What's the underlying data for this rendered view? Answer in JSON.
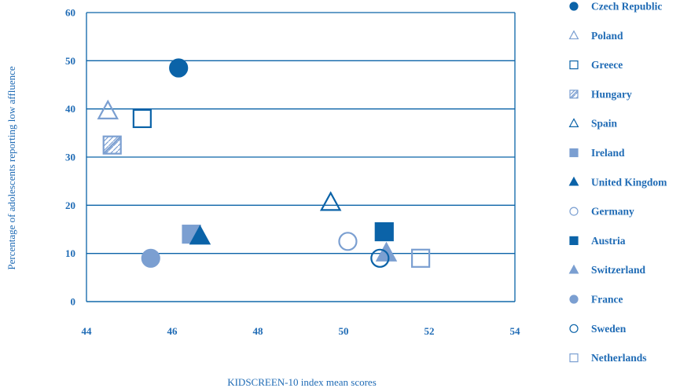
{
  "chart_data": {
    "type": "scatter",
    "title": "",
    "xlabel": "KIDSCREEN-10 index mean scores",
    "ylabel": "Percentage of adolescents reporting low affluence",
    "xlim": [
      44,
      54
    ],
    "ylim": [
      0,
      60
    ],
    "xticks": [
      "44",
      "46",
      "48",
      "50",
      "52",
      "54"
    ],
    "yticks": [
      "0",
      "10",
      "20",
      "30",
      "40",
      "50",
      "60"
    ],
    "grid": "horizontal",
    "legend_position": "right",
    "colors": {
      "dark": "#0b63a8",
      "light": "#7b9fd1",
      "text": "#1f6bb5"
    },
    "series": [
      {
        "name": "Czech Republic",
        "marker": "circle",
        "fill": "filled",
        "color": "#0b63a8",
        "x": 46.15,
        "y": 48.5
      },
      {
        "name": "Poland",
        "marker": "triangle",
        "fill": "open",
        "color": "#7b9fd1",
        "x": 44.5,
        "y": 39.5
      },
      {
        "name": "Greece",
        "marker": "square",
        "fill": "open",
        "color": "#0b63a8",
        "x": 45.3,
        "y": 38
      },
      {
        "name": "Hungary",
        "marker": "square",
        "fill": "hatched",
        "color": "#7b9fd1",
        "x": 44.6,
        "y": 32.5
      },
      {
        "name": "Spain",
        "marker": "triangle",
        "fill": "open",
        "color": "#0b63a8",
        "x": 49.7,
        "y": 20.5
      },
      {
        "name": "Ireland",
        "marker": "square",
        "fill": "filled",
        "color": "#7b9fd1",
        "x": 46.45,
        "y": 14
      },
      {
        "name": "United Kingdom",
        "marker": "triangle",
        "fill": "filled",
        "color": "#0b63a8",
        "x": 46.65,
        "y": 13.5
      },
      {
        "name": "Germany",
        "marker": "circle",
        "fill": "open",
        "color": "#7b9fd1",
        "x": 50.1,
        "y": 12.5
      },
      {
        "name": "Austria",
        "marker": "square",
        "fill": "filled",
        "color": "#0b63a8",
        "x": 50.95,
        "y": 14.5
      },
      {
        "name": "Switzerland",
        "marker": "triangle",
        "fill": "filled",
        "color": "#7b9fd1",
        "x": 51,
        "y": 10
      },
      {
        "name": "France",
        "marker": "circle",
        "fill": "filled",
        "color": "#7b9fd1",
        "x": 45.5,
        "y": 9
      },
      {
        "name": "Sweden",
        "marker": "circle",
        "fill": "open",
        "color": "#0b63a8",
        "x": 50.85,
        "y": 9
      },
      {
        "name": "Netherlands",
        "marker": "square",
        "fill": "open",
        "color": "#7b9fd1",
        "x": 51.8,
        "y": 9
      }
    ]
  }
}
